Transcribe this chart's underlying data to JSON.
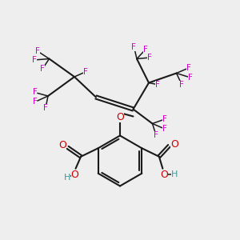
{
  "background_color": "#eeeeee",
  "bond_color": "#1a1a1a",
  "F_color": "#cc00cc",
  "O_color": "#cc0000",
  "H_color": "#3d9b9b",
  "figsize": [
    3.0,
    3.0
  ],
  "dpi": 100,
  "xlim": [
    0,
    10
  ],
  "ylim": [
    0,
    10
  ]
}
